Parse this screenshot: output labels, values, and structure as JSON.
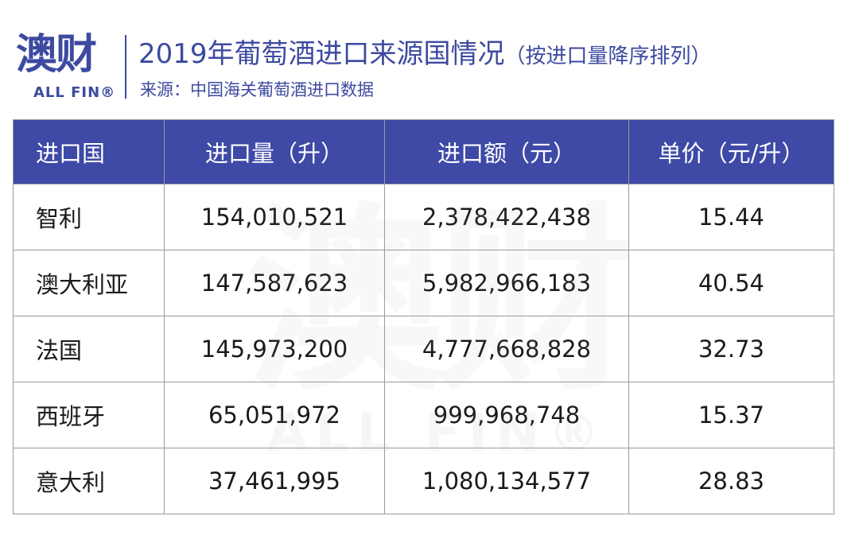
{
  "logo": {
    "cn": "澳财",
    "en": "ALL FIN®"
  },
  "title": {
    "main": "2019年葡萄酒进口来源国情况",
    "sub": "（按进口量降序排列）"
  },
  "source": "来源：中国海关葡萄酒进口数据",
  "table": {
    "headers": [
      "进口国",
      "进口量（升）",
      "进口额（元）",
      "单价（元/升）"
    ],
    "rows": [
      [
        "智利",
        "154,010,521",
        "2,378,422,438",
        "15.44"
      ],
      [
        "澳大利亚",
        "147,587,623",
        "5,982,966,183",
        "40.54"
      ],
      [
        "法国",
        "145,973,200",
        "4,777,668,828",
        "32.73"
      ],
      [
        "西班牙",
        "65,051,972",
        "999,968,748",
        "15.37"
      ],
      [
        "意大利",
        "37,461,995",
        "1,080,134,577",
        "28.83"
      ]
    ]
  },
  "colors": {
    "brand": "#3d4aa0",
    "header_bg": "#3e4aa6"
  }
}
